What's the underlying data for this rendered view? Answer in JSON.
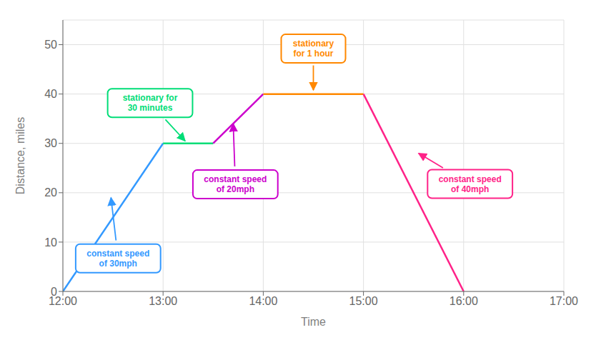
{
  "chart_data": {
    "type": "line",
    "grid": true,
    "x_label": "Time",
    "y_label": "Distance, miles",
    "xlim": [
      0,
      5
    ],
    "xticks": [
      {
        "value": 0,
        "label": "12:00"
      },
      {
        "value": 1,
        "label": "13:00"
      },
      {
        "value": 2,
        "label": "14:00"
      },
      {
        "value": 3,
        "label": "15:00"
      },
      {
        "value": 4,
        "label": "16:00"
      },
      {
        "value": 5,
        "label": "17:00"
      }
    ],
    "ylim": [
      0,
      55
    ],
    "yticks": [
      0,
      10,
      20,
      30,
      40,
      50
    ],
    "series": [
      {
        "color": "#3399ff",
        "x": [
          0,
          1.0
        ],
        "values": [
          0,
          30
        ]
      },
      {
        "color": "#00dd77",
        "x": [
          1.0,
          1.5
        ],
        "values": [
          30,
          30
        ]
      },
      {
        "color": "#cc00cc",
        "x": [
          1.5,
          2.0
        ],
        "values": [
          30,
          40
        ]
      },
      {
        "color": "#ff8800",
        "x": [
          2.0,
          3.0
        ],
        "values": [
          40,
          40
        ]
      },
      {
        "color": "#ff2288",
        "x": [
          3.0,
          4.0
        ],
        "values": [
          40,
          0
        ]
      }
    ],
    "annotations": [
      {
        "text": "constant speed\nof 30mph",
        "color": "#3399ff",
        "x": 0.48,
        "y": 19
      },
      {
        "text": "stationary for\n30 minutes",
        "color": "#00dd77",
        "x": 1.22,
        "y": 30.5
      },
      {
        "text": "constant speed\nof 20mph",
        "color": "#cc00cc",
        "x": 1.7,
        "y": 34
      },
      {
        "text": "stationary\nfor 1 hour",
        "color": "#ff8800",
        "x": 2.5,
        "y": 40.8
      },
      {
        "text": "constant speed\nof 40mph",
        "color": "#ff2288",
        "x": 3.55,
        "y": 28
      }
    ]
  }
}
